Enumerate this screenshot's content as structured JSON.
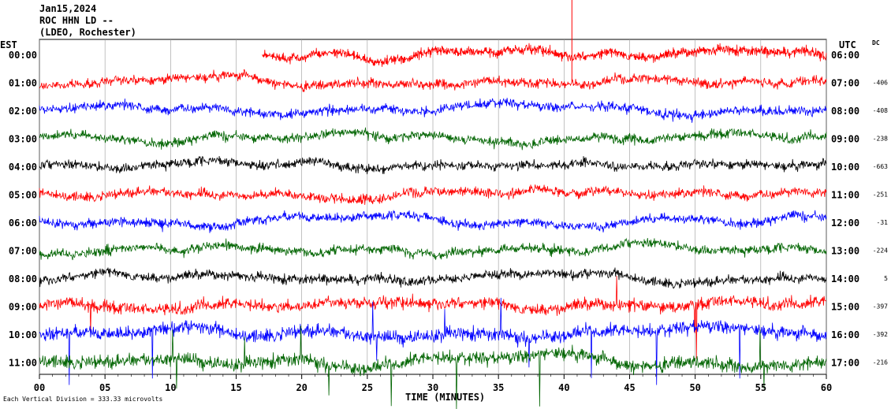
{
  "header": {
    "date": "Jan15,2024",
    "station": "ROC HHN LD --",
    "network": "(LDEO, Rochester)"
  },
  "left_axis_label": "EST",
  "right_axis_label": "UTC",
  "dc_label": "DC",
  "x_axis_title": "TIME (MINUTES)",
  "scale_note": "Each Vertical Division = 333.33 microvolts",
  "chart_data": {
    "type": "line",
    "title": "",
    "xlabel": "TIME (MINUTES)",
    "ylabel": "",
    "xlim": [
      0,
      60
    ],
    "x_ticks": [
      "00",
      "05",
      "10",
      "15",
      "20",
      "25",
      "30",
      "35",
      "40",
      "45",
      "50",
      "55",
      "60"
    ],
    "series_colors": [
      "#ff0000",
      "#0000ff",
      "#006400",
      "#000000"
    ],
    "rows": [
      {
        "est": "00:00",
        "utc": "06:00",
        "dc": "",
        "color": "#ff0000",
        "data_start_min": 17.0,
        "noise": "low"
      },
      {
        "est": "01:00",
        "utc": "07:00",
        "dc": "-406",
        "color": "#ff0000",
        "data_start_min": 0,
        "noise": "low"
      },
      {
        "est": "02:00",
        "utc": "08:00",
        "dc": "-408",
        "color": "#0000ff",
        "data_start_min": 0,
        "noise": "low"
      },
      {
        "est": "03:00",
        "utc": "09:00",
        "dc": "-238",
        "color": "#006400",
        "data_start_min": 0,
        "noise": "low"
      },
      {
        "est": "04:00",
        "utc": "10:00",
        "dc": "-663",
        "color": "#000000",
        "data_start_min": 0,
        "noise": "low"
      },
      {
        "est": "05:00",
        "utc": "11:00",
        "dc": "-251",
        "color": "#ff0000",
        "data_start_min": 0,
        "noise": "low"
      },
      {
        "est": "06:00",
        "utc": "12:00",
        "dc": "-31",
        "color": "#0000ff",
        "data_start_min": 0,
        "noise": "low"
      },
      {
        "est": "07:00",
        "utc": "13:00",
        "dc": "-224",
        "color": "#006400",
        "data_start_min": 0,
        "noise": "low"
      },
      {
        "est": "08:00",
        "utc": "14:00",
        "dc": "5",
        "color": "#000000",
        "data_start_min": 0,
        "noise": "low"
      },
      {
        "est": "09:00",
        "utc": "15:00",
        "dc": "-397",
        "color": "#ff0000",
        "data_start_min": 0,
        "noise": "medium"
      },
      {
        "est": "10:00",
        "utc": "16:00",
        "dc": "-392",
        "color": "#0000ff",
        "data_start_min": 0,
        "noise": "high"
      },
      {
        "est": "11:00",
        "utc": "17:00",
        "dc": "-216",
        "color": "#006400",
        "data_start_min": 0,
        "noise": "high"
      }
    ]
  }
}
